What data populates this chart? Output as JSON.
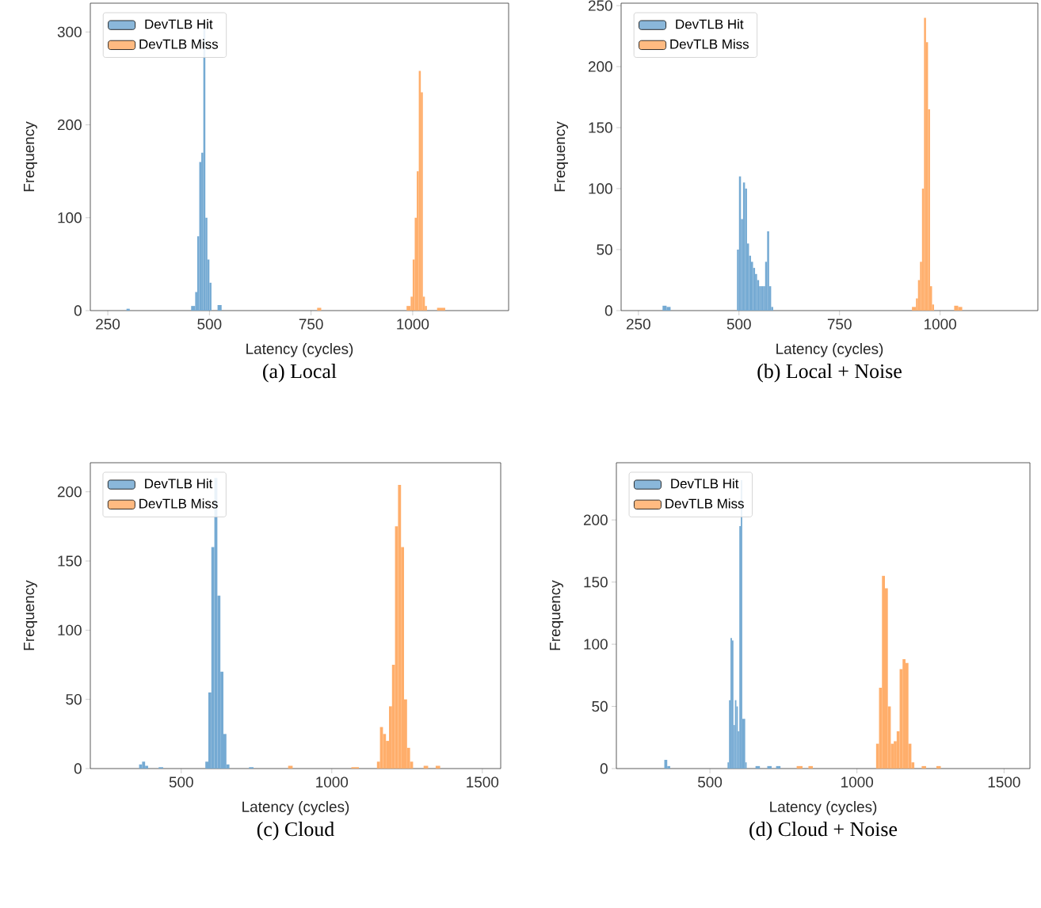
{
  "chart_data": [
    {
      "type": "histogram",
      "title": "(a) Local",
      "xlabel": "Latency (cycles)",
      "ylabel": "Frequency",
      "xlim": [
        207,
        1236
      ],
      "ylim": [
        0,
        331
      ],
      "xticks": [
        250,
        500,
        750,
        1000
      ],
      "yticks": [
        0,
        100,
        200,
        300
      ],
      "legend": "top left",
      "bins": [
        296,
        304,
        455,
        465,
        470,
        475,
        480,
        485,
        490,
        495,
        500,
        505,
        520,
        530,
        765,
        775,
        985,
        995,
        1000,
        1005,
        1010,
        1015,
        1020,
        1025,
        1030,
        1035,
        1060,
        1080
      ],
      "series": [
        {
          "name": "DevTLB Hit",
          "color": "#75aad3",
          "values": [
            2,
            0,
            5,
            20,
            80,
            160,
            170,
            312,
            100,
            55,
            30,
            0,
            6,
            0,
            0,
            0,
            0,
            0,
            0,
            0,
            0,
            0,
            0,
            0,
            0,
            0,
            0
          ]
        },
        {
          "name": "DevTLB Miss",
          "color": "#ffae6b",
          "values": [
            0,
            0,
            0,
            0,
            0,
            0,
            0,
            0,
            0,
            0,
            0,
            0,
            0,
            0,
            3,
            0,
            5,
            15,
            55,
            100,
            150,
            258,
            235,
            15,
            5,
            0,
            3
          ]
        }
      ]
    },
    {
      "type": "histogram",
      "title": "(b) Local + Noise",
      "xlabel": "Latency (cycles)",
      "ylabel": "Frequency",
      "xlim": [
        207,
        1243
      ],
      "ylim": [
        0,
        252
      ],
      "xticks": [
        250,
        500,
        750,
        1000
      ],
      "yticks": [
        0,
        50,
        100,
        150,
        200,
        250
      ],
      "legend": "top left",
      "bins": [
        310,
        320,
        330,
        495,
        500,
        505,
        510,
        515,
        520,
        525,
        530,
        535,
        540,
        545,
        550,
        555,
        560,
        565,
        570,
        575,
        580,
        585,
        930,
        940,
        945,
        950,
        955,
        960,
        965,
        970,
        975,
        980,
        985,
        1035,
        1045,
        1055
      ],
      "series": [
        {
          "name": "DevTLB Hit",
          "color": "#75aad3",
          "values": [
            4,
            3,
            0,
            50,
            110,
            75,
            105,
            100,
            55,
            45,
            40,
            35,
            30,
            25,
            20,
            20,
            20,
            40,
            65,
            20,
            3,
            0,
            0,
            0,
            0,
            0,
            0,
            0,
            0,
            0,
            0,
            0,
            0,
            0,
            0
          ]
        },
        {
          "name": "DevTLB Miss",
          "color": "#ffae6b",
          "values": [
            0,
            0,
            0,
            0,
            0,
            0,
            0,
            0,
            0,
            0,
            0,
            0,
            0,
            0,
            0,
            0,
            0,
            0,
            0,
            0,
            0,
            0,
            3,
            10,
            25,
            40,
            100,
            240,
            220,
            165,
            20,
            5,
            0,
            4,
            3
          ]
        }
      ]
    },
    {
      "type": "histogram",
      "title": "(c) Cloud",
      "xlabel": "Latency (cycles)",
      "ylabel": "Frequency",
      "xlim": [
        198,
        1561
      ],
      "ylim": [
        0,
        221
      ],
      "xticks": [
        500,
        1000,
        1500
      ],
      "yticks": [
        0,
        50,
        100,
        150,
        200
      ],
      "legend": "top left",
      "bins": [
        360,
        370,
        380,
        390,
        425,
        440,
        580,
        590,
        600,
        610,
        620,
        630,
        640,
        650,
        660,
        725,
        740,
        855,
        870,
        1065,
        1090,
        1150,
        1160,
        1170,
        1180,
        1190,
        1200,
        1210,
        1220,
        1230,
        1240,
        1250,
        1260,
        1270,
        1305,
        1320,
        1345,
        1360
      ],
      "series": [
        {
          "name": "DevTLB Hit",
          "color": "#75aad3",
          "values": [
            3,
            5,
            2,
            0,
            1,
            0,
            5,
            55,
            160,
            210,
            125,
            70,
            25,
            3,
            0,
            1,
            0,
            0,
            0,
            0,
            0,
            0,
            0,
            0,
            0,
            0,
            0,
            0,
            0,
            0,
            0,
            0,
            0,
            0,
            0,
            0,
            0
          ]
        },
        {
          "name": "DevTLB Miss",
          "color": "#ffae6b",
          "values": [
            0,
            0,
            0,
            0,
            0,
            0,
            0,
            0,
            0,
            0,
            0,
            0,
            0,
            0,
            0,
            0,
            0,
            2,
            0,
            1,
            0,
            5,
            30,
            25,
            20,
            45,
            75,
            175,
            205,
            160,
            50,
            15,
            5,
            0,
            2,
            0,
            2
          ]
        }
      ]
    },
    {
      "type": "histogram",
      "title": "(d) Cloud + Noise",
      "xlabel": "Latency (cycles)",
      "ylabel": "Frequency",
      "xlim": [
        182,
        1588
      ],
      "ylim": [
        0,
        246
      ],
      "xticks": [
        500,
        1000,
        1500
      ],
      "yticks": [
        0,
        50,
        100,
        150,
        200
      ],
      "legend": "top left",
      "bins": [
        345,
        355,
        365,
        560,
        565,
        570,
        575,
        580,
        585,
        590,
        595,
        600,
        605,
        610,
        620,
        625,
        655,
        670,
        695,
        710,
        725,
        740,
        795,
        815,
        835,
        850,
        1065,
        1075,
        1085,
        1095,
        1105,
        1115,
        1125,
        1135,
        1145,
        1155,
        1165,
        1175,
        1185,
        1195,
        1220,
        1235,
        1270,
        1285
      ],
      "series": [
        {
          "name": "DevTLB Hit",
          "color": "#75aad3",
          "values": [
            7,
            2,
            0,
            5,
            55,
            105,
            103,
            35,
            55,
            50,
            30,
            195,
            232,
            40,
            5,
            0,
            2,
            0,
            2,
            0,
            2,
            0,
            0,
            0,
            0,
            0,
            0,
            0,
            0,
            0,
            0,
            0,
            0,
            0,
            0,
            0,
            0,
            0,
            0,
            0,
            0,
            0,
            0
          ]
        },
        {
          "name": "DevTLB Miss",
          "color": "#ffae6b",
          "values": [
            0,
            0,
            0,
            0,
            0,
            0,
            0,
            0,
            0,
            0,
            0,
            0,
            0,
            0,
            0,
            0,
            0,
            0,
            0,
            0,
            0,
            0,
            2,
            0,
            2,
            0,
            20,
            65,
            155,
            145,
            50,
            20,
            22,
            30,
            80,
            88,
            85,
            20,
            5,
            0,
            2,
            0,
            2
          ]
        }
      ]
    }
  ]
}
